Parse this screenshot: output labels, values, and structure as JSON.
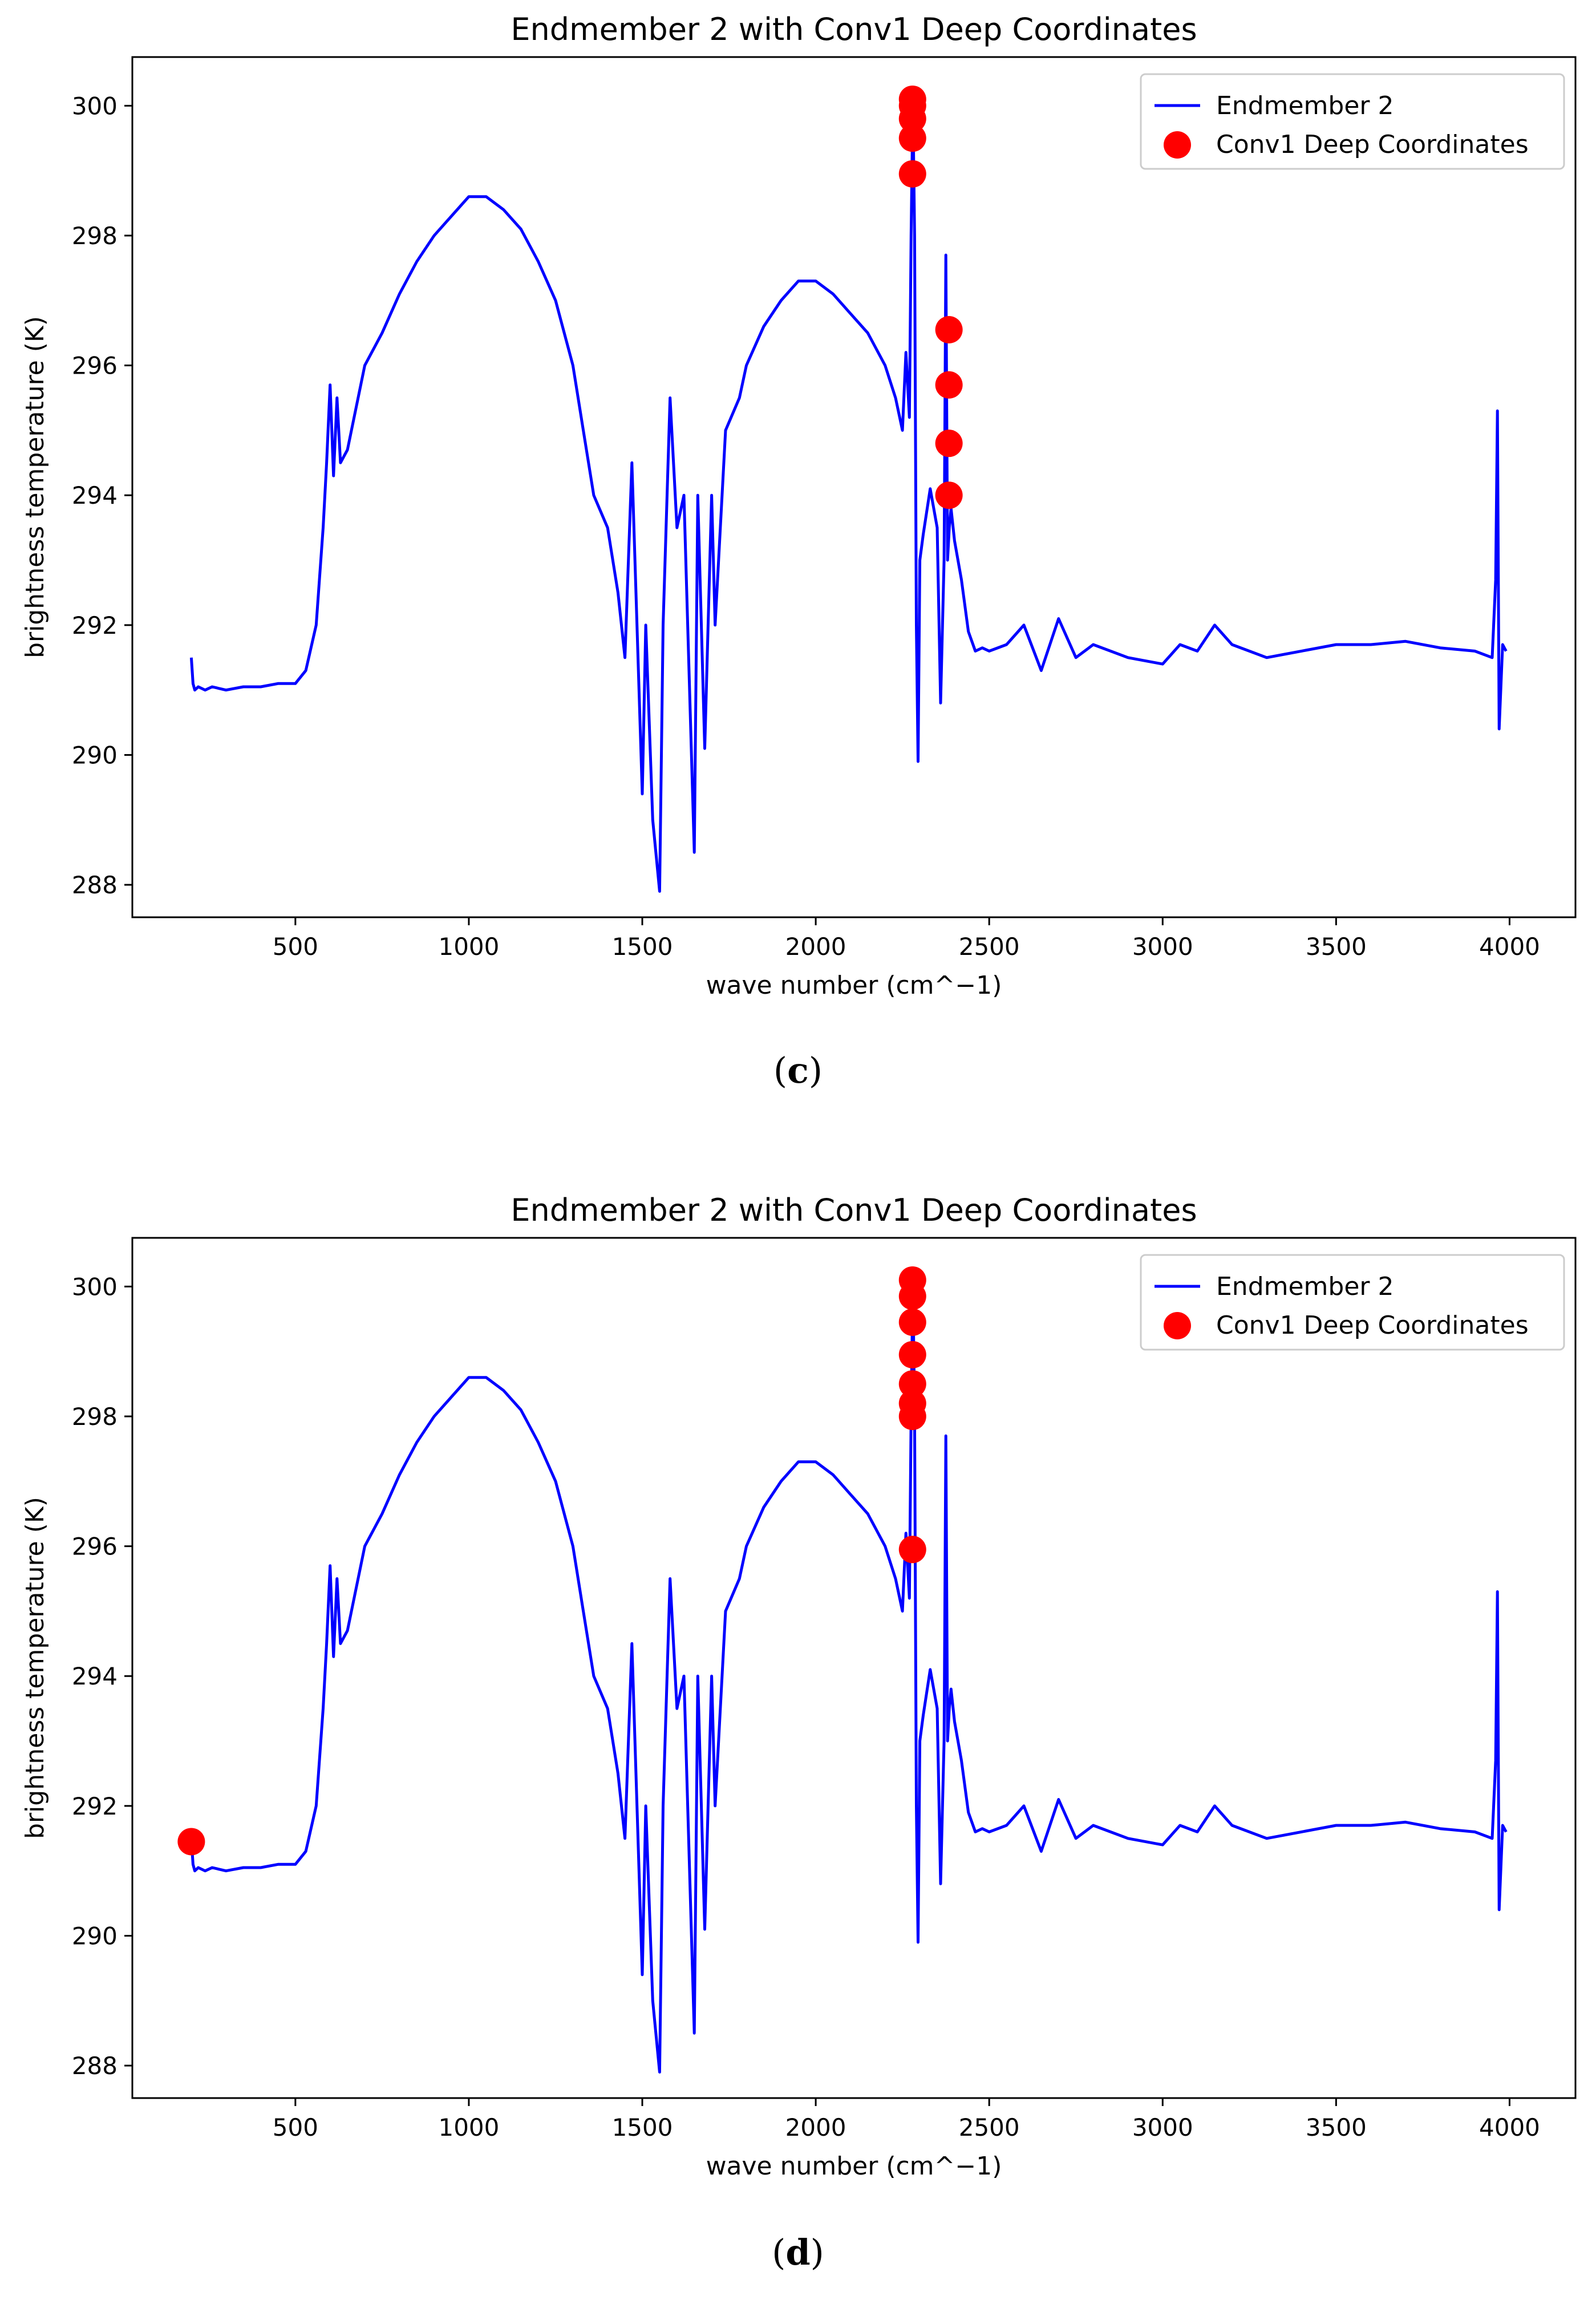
{
  "chart_data": [
    {
      "type": "line",
      "panel_label": "c",
      "title": "Endmember 2 with Conv1 Deep Coordinates",
      "xlabel": "wave number (cm^−1)",
      "ylabel": "brightness temperature (K)",
      "xlim": [
        30,
        4190
      ],
      "ylim": [
        287.5,
        300.75
      ],
      "xticks": [
        500,
        1000,
        1500,
        2000,
        2500,
        3000,
        3500,
        4000
      ],
      "yticks": [
        288,
        290,
        292,
        294,
        296,
        298,
        300
      ],
      "legend": {
        "position": "upper right",
        "entries": [
          "Endmember 2",
          "Conv1 Deep Coordinates"
        ]
      },
      "colors": {
        "line": "#0000ff",
        "points": "#ff0000"
      },
      "series": [
        {
          "name": "Endmember 2",
          "kind": "line",
          "x": [
            200,
            205,
            210,
            220,
            240,
            260,
            300,
            350,
            400,
            450,
            500,
            530,
            560,
            580,
            590,
            600,
            610,
            620,
            630,
            650,
            700,
            750,
            800,
            850,
            900,
            950,
            1000,
            1050,
            1100,
            1150,
            1200,
            1250,
            1300,
            1330,
            1360,
            1400,
            1430,
            1450,
            1470,
            1500,
            1510,
            1530,
            1550,
            1560,
            1580,
            1600,
            1620,
            1650,
            1660,
            1680,
            1700,
            1710,
            1740,
            1780,
            1800,
            1850,
            1900,
            1950,
            2000,
            2050,
            2100,
            2150,
            2200,
            2230,
            2250,
            2260,
            2270,
            2275,
            2280,
            2285,
            2290,
            2295,
            2300,
            2310,
            2330,
            2350,
            2360,
            2370,
            2375,
            2380,
            2385,
            2390,
            2400,
            2420,
            2440,
            2460,
            2480,
            2500,
            2550,
            2600,
            2650,
            2700,
            2750,
            2800,
            2900,
            3000,
            3050,
            3100,
            3150,
            3200,
            3300,
            3400,
            3500,
            3600,
            3700,
            3800,
            3900,
            3950,
            3960,
            3965,
            3970,
            3980,
            3990
          ],
          "y": [
            291.5,
            291.1,
            291.0,
            291.05,
            291.0,
            291.05,
            291.0,
            291.05,
            291.05,
            291.1,
            291.1,
            291.3,
            292.0,
            293.5,
            294.5,
            295.7,
            294.3,
            295.5,
            294.5,
            294.7,
            296.0,
            296.5,
            297.1,
            297.6,
            298.0,
            298.3,
            298.6,
            298.6,
            298.4,
            298.1,
            297.6,
            297.0,
            296.0,
            295.0,
            294.0,
            293.5,
            292.5,
            291.5,
            294.5,
            289.4,
            292.0,
            289.0,
            287.9,
            292.0,
            295.5,
            293.5,
            294.0,
            288.5,
            294.0,
            290.1,
            294.0,
            292.0,
            295.0,
            295.5,
            296.0,
            296.6,
            297.0,
            297.3,
            297.3,
            297.1,
            296.8,
            296.5,
            296.0,
            295.5,
            295.0,
            296.2,
            295.2,
            298.0,
            300.1,
            298.0,
            292.0,
            289.9,
            293.0,
            293.4,
            294.1,
            293.5,
            290.8,
            293.0,
            297.7,
            293.0,
            293.5,
            293.8,
            293.3,
            292.7,
            291.9,
            291.6,
            291.65,
            291.6,
            291.7,
            292.0,
            291.3,
            292.1,
            291.5,
            291.7,
            291.5,
            291.4,
            291.7,
            291.6,
            292.0,
            291.7,
            291.5,
            291.6,
            291.7,
            291.7,
            291.75,
            291.65,
            291.6,
            291.5,
            292.7,
            295.3,
            290.4,
            291.7,
            291.6
          ]
        },
        {
          "name": "Conv1 Deep Coordinates",
          "kind": "scatter",
          "x": [
            2279,
            2279,
            2279,
            2279,
            2279,
            2384,
            2384,
            2384,
            2384
          ],
          "y": [
            300.1,
            300.0,
            299.8,
            299.5,
            298.95,
            296.55,
            295.7,
            294.8,
            294.0
          ]
        }
      ]
    },
    {
      "type": "line",
      "panel_label": "d",
      "title": "Endmember 2 with Conv1 Deep Coordinates",
      "xlabel": "wave number (cm^−1)",
      "ylabel": "brightness temperature (K)",
      "xlim": [
        30,
        4190
      ],
      "ylim": [
        287.5,
        300.75
      ],
      "xticks": [
        500,
        1000,
        1500,
        2000,
        2500,
        3000,
        3500,
        4000
      ],
      "yticks": [
        288,
        290,
        292,
        294,
        296,
        298,
        300
      ],
      "legend": {
        "position": "upper right",
        "entries": [
          "Endmember 2",
          "Conv1 Deep Coordinates"
        ]
      },
      "colors": {
        "line": "#0000ff",
        "points": "#ff0000"
      },
      "series": [
        {
          "name": "Endmember 2",
          "kind": "line",
          "x": [
            200,
            205,
            210,
            220,
            240,
            260,
            300,
            350,
            400,
            450,
            500,
            530,
            560,
            580,
            590,
            600,
            610,
            620,
            630,
            650,
            700,
            750,
            800,
            850,
            900,
            950,
            1000,
            1050,
            1100,
            1150,
            1200,
            1250,
            1300,
            1330,
            1360,
            1400,
            1430,
            1450,
            1470,
            1500,
            1510,
            1530,
            1550,
            1560,
            1580,
            1600,
            1620,
            1650,
            1660,
            1680,
            1700,
            1710,
            1740,
            1780,
            1800,
            1850,
            1900,
            1950,
            2000,
            2050,
            2100,
            2150,
            2200,
            2230,
            2250,
            2260,
            2270,
            2275,
            2280,
            2285,
            2290,
            2295,
            2300,
            2310,
            2330,
            2350,
            2360,
            2370,
            2375,
            2380,
            2385,
            2390,
            2400,
            2420,
            2440,
            2460,
            2480,
            2500,
            2550,
            2600,
            2650,
            2700,
            2750,
            2800,
            2900,
            3000,
            3050,
            3100,
            3150,
            3200,
            3300,
            3400,
            3500,
            3600,
            3700,
            3800,
            3900,
            3950,
            3960,
            3965,
            3970,
            3980,
            3990
          ],
          "y": [
            291.5,
            291.1,
            291.0,
            291.05,
            291.0,
            291.05,
            291.0,
            291.05,
            291.05,
            291.1,
            291.1,
            291.3,
            292.0,
            293.5,
            294.5,
            295.7,
            294.3,
            295.5,
            294.5,
            294.7,
            296.0,
            296.5,
            297.1,
            297.6,
            298.0,
            298.3,
            298.6,
            298.6,
            298.4,
            298.1,
            297.6,
            297.0,
            296.0,
            295.0,
            294.0,
            293.5,
            292.5,
            291.5,
            294.5,
            289.4,
            292.0,
            289.0,
            287.9,
            292.0,
            295.5,
            293.5,
            294.0,
            288.5,
            294.0,
            290.1,
            294.0,
            292.0,
            295.0,
            295.5,
            296.0,
            296.6,
            297.0,
            297.3,
            297.3,
            297.1,
            296.8,
            296.5,
            296.0,
            295.5,
            295.0,
            296.2,
            295.2,
            298.0,
            300.1,
            298.0,
            292.0,
            289.9,
            293.0,
            293.4,
            294.1,
            293.5,
            290.8,
            293.0,
            297.7,
            293.0,
            293.5,
            293.8,
            293.3,
            292.7,
            291.9,
            291.6,
            291.65,
            291.6,
            291.7,
            292.0,
            291.3,
            292.1,
            291.5,
            291.7,
            291.5,
            291.4,
            291.7,
            291.6,
            292.0,
            291.7,
            291.5,
            291.6,
            291.7,
            291.7,
            291.75,
            291.65,
            291.6,
            291.5,
            292.7,
            295.3,
            290.4,
            291.7,
            291.6
          ]
        },
        {
          "name": "Conv1 Deep Coordinates",
          "kind": "scatter",
          "x": [
            2279,
            2279,
            2279,
            2279,
            2279,
            2279,
            2279,
            2279,
            200
          ],
          "y": [
            300.1,
            299.85,
            299.45,
            298.95,
            298.5,
            298.0,
            295.95,
            298.2,
            291.45
          ]
        }
      ]
    }
  ]
}
